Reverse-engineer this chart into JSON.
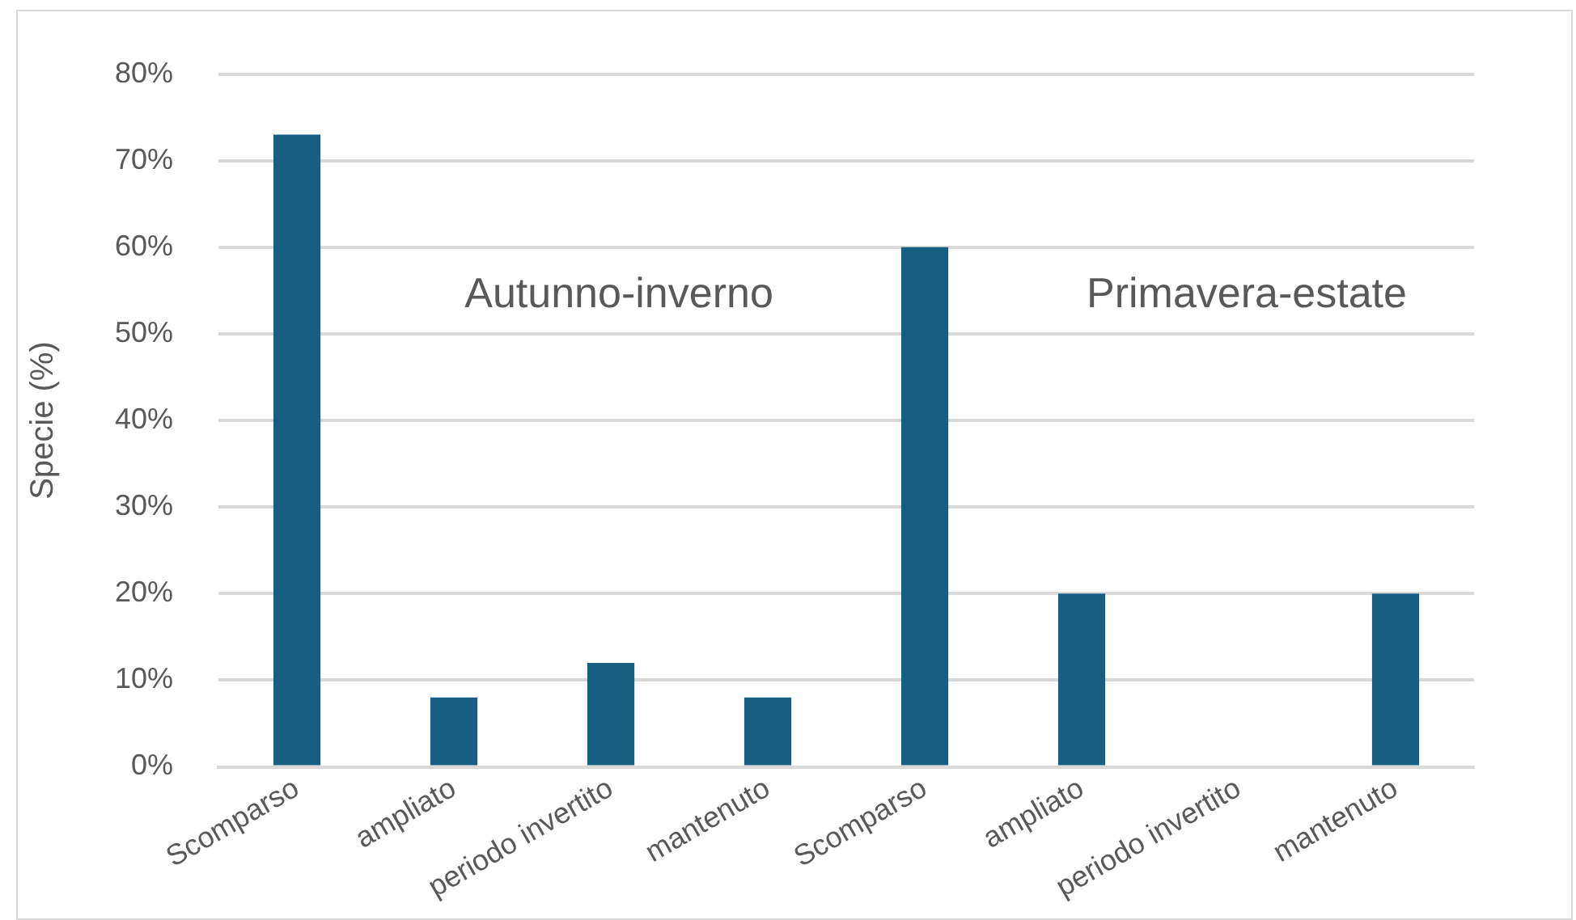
{
  "chart_data": {
    "type": "bar",
    "categories": [
      "Scomparso",
      "ampliato",
      "periodo invertito",
      "mantenuto",
      "Scomparso",
      "ampliato",
      "periodo invertito",
      "mantenuto"
    ],
    "values": [
      73,
      8,
      12,
      8,
      60,
      20,
      0,
      20
    ],
    "color": "#175f82",
    "ylabel": "Specie (%)",
    "ylim": [
      0,
      80
    ],
    "yticks": [
      {
        "value": 0,
        "label": "0%"
      },
      {
        "value": 10,
        "label": "10%"
      },
      {
        "value": 20,
        "label": "20%"
      },
      {
        "value": 30,
        "label": "30%"
      },
      {
        "value": 40,
        "label": "40%"
      },
      {
        "value": 50,
        "label": "50%"
      },
      {
        "value": 60,
        "label": "60%"
      },
      {
        "value": 70,
        "label": "70%"
      },
      {
        "value": 80,
        "label": "80%"
      }
    ],
    "annotations": [
      "Autunno-inverno",
      "Primavera-estate"
    ],
    "grid": "y",
    "legend": false
  }
}
